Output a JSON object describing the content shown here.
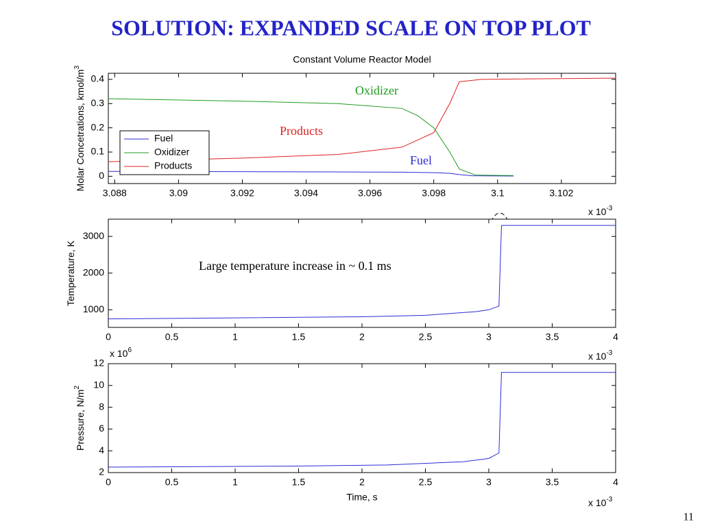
{
  "title": "SOLUTION: EXPANDED SCALE ON TOP PLOT",
  "page_number": "11",
  "chart_data": [
    {
      "type": "line",
      "title": "Constant Volume Reactor Model",
      "ylabel": {
        "text": "Molar Concetrations, kmol/m",
        "superscript": "3"
      },
      "x_multiplier": {
        "base": "x 10",
        "exponent": "-3"
      },
      "xlim": [
        3.0878,
        3.1037
      ],
      "ylim": [
        -0.03,
        0.425
      ],
      "xticks": [
        3.088,
        3.09,
        3.092,
        3.094,
        3.096,
        3.098,
        3.1,
        3.102
      ],
      "yticks": [
        0,
        0.1,
        0.2,
        0.3,
        0.4
      ],
      "legend": "lower left",
      "series": [
        {
          "name": "Fuel",
          "color": "#2b2bd6",
          "x": [
            3.0878,
            3.092,
            3.095,
            3.097,
            3.098,
            3.0985,
            3.0988,
            3.0992,
            3.1005
          ],
          "values": [
            0.02,
            0.019,
            0.018,
            0.017,
            0.015,
            0.012,
            0.007,
            0.002,
            0.001
          ]
        },
        {
          "name": "Oxidizer",
          "color": "#1f9a1f",
          "x": [
            3.0878,
            3.092,
            3.095,
            3.097,
            3.0975,
            3.098,
            3.0985,
            3.0988,
            3.0993,
            3.1005
          ],
          "values": [
            0.32,
            0.31,
            0.3,
            0.28,
            0.25,
            0.2,
            0.1,
            0.03,
            0.005,
            0.003
          ]
        },
        {
          "name": "Products",
          "color": "#e02020",
          "x": [
            3.0878,
            3.092,
            3.095,
            3.097,
            3.098,
            3.0985,
            3.0988,
            3.0995,
            3.1037
          ],
          "values": [
            0.06,
            0.075,
            0.09,
            0.12,
            0.18,
            0.3,
            0.39,
            0.4,
            0.405
          ]
        }
      ],
      "annotations": [
        {
          "text": "Oxidizer",
          "color": "#1f9a1f"
        },
        {
          "text": "Products",
          "color": "#e02020"
        },
        {
          "text": "Fuel",
          "color": "#2b2bd6"
        }
      ]
    },
    {
      "type": "line",
      "ylabel": {
        "text": "Temperature, K"
      },
      "x_multiplier": {
        "base": "x 10",
        "exponent": "-3"
      },
      "xlim": [
        0,
        4
      ],
      "ylim": [
        520,
        3470
      ],
      "xticks": [
        0,
        0.5,
        1,
        1.5,
        2,
        2.5,
        3,
        3.5,
        4
      ],
      "yticks": [
        1000,
        2000,
        3000
      ],
      "series": [
        {
          "color": "#2b2bd6",
          "x": [
            0,
            1,
            2,
            2.5,
            2.9,
            3.0,
            3.08,
            3.1,
            4
          ],
          "values": [
            750,
            780,
            810,
            850,
            950,
            1000,
            1100,
            3300,
            3300
          ]
        }
      ],
      "annotations": [
        {
          "text": "Large temperature increase in ~ 0.1 ms",
          "color": "#000000"
        }
      ]
    },
    {
      "type": "line",
      "xlabel": "Time, s",
      "ylabel": {
        "text": "Pressure, N/m",
        "superscript": "2"
      },
      "x_multiplier": {
        "base": "x 10",
        "exponent": "-3"
      },
      "y_multiplier": {
        "base": "x 10",
        "exponent": "6"
      },
      "xlim": [
        0,
        4
      ],
      "ylim": [
        2,
        12
      ],
      "xticks": [
        0,
        0.5,
        1,
        1.5,
        2,
        2.5,
        3,
        3.5,
        4
      ],
      "yticks": [
        2,
        4,
        6,
        8,
        10,
        12
      ],
      "series": [
        {
          "color": "#2b2bd6",
          "x": [
            0,
            1.5,
            2.2,
            2.8,
            3.0,
            3.08,
            3.1,
            4
          ],
          "values": [
            2.5,
            2.6,
            2.7,
            3.0,
            3.3,
            3.8,
            11.2,
            11.2
          ]
        }
      ]
    }
  ]
}
